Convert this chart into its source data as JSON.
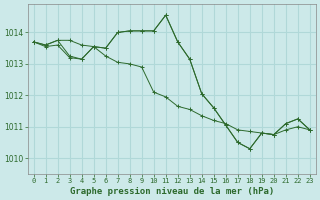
{
  "title": "Graphe pression niveau de la mer (hPa)",
  "bg_color": "#cce9e9",
  "grid_color": "#b0d8d8",
  "line_color": "#2d6a2d",
  "xlim": [
    -0.5,
    23.5
  ],
  "ylim": [
    1009.5,
    1014.9
  ],
  "yticks": [
    1010,
    1011,
    1012,
    1013,
    1014
  ],
  "xticks": [
    0,
    1,
    2,
    3,
    4,
    5,
    6,
    7,
    8,
    9,
    10,
    11,
    12,
    13,
    14,
    15,
    16,
    17,
    18,
    19,
    20,
    21,
    22,
    23
  ],
  "series1": [
    [
      0,
      1013.7
    ],
    [
      1,
      1013.6
    ],
    [
      2,
      1013.75
    ],
    [
      3,
      1013.75
    ],
    [
      4,
      1013.6
    ],
    [
      5,
      1013.55
    ],
    [
      6,
      1013.5
    ],
    [
      7,
      1014.0
    ],
    [
      8,
      1014.05
    ],
    [
      9,
      1014.05
    ],
    [
      10,
      1014.05
    ],
    [
      11,
      1014.55
    ],
    [
      12,
      1013.7
    ],
    [
      13,
      1013.15
    ],
    [
      14,
      1012.05
    ],
    [
      15,
      1011.6
    ],
    [
      16,
      1011.05
    ],
    [
      17,
      1010.5
    ],
    [
      18,
      1010.3
    ],
    [
      19,
      1010.8
    ],
    [
      20,
      1010.75
    ],
    [
      21,
      1011.1
    ],
    [
      22,
      1011.25
    ],
    [
      23,
      1010.9
    ]
  ],
  "series2": [
    [
      0,
      1013.7
    ],
    [
      1,
      1013.55
    ],
    [
      2,
      1013.6
    ],
    [
      3,
      1013.2
    ],
    [
      4,
      1013.15
    ],
    [
      5,
      1013.55
    ],
    [
      6,
      1013.25
    ],
    [
      7,
      1013.05
    ],
    [
      8,
      1013.0
    ],
    [
      9,
      1012.9
    ],
    [
      10,
      1012.1
    ],
    [
      11,
      1011.95
    ],
    [
      12,
      1011.65
    ],
    [
      13,
      1011.55
    ],
    [
      14,
      1011.35
    ],
    [
      15,
      1011.2
    ],
    [
      16,
      1011.1
    ],
    [
      17,
      1010.9
    ],
    [
      18,
      1010.85
    ],
    [
      19,
      1010.8
    ],
    [
      20,
      1010.75
    ],
    [
      21,
      1010.9
    ],
    [
      22,
      1011.0
    ],
    [
      23,
      1010.9
    ]
  ],
  "series3": [
    [
      0,
      1013.7
    ],
    [
      1,
      1013.6
    ],
    [
      2,
      1013.75
    ],
    [
      3,
      1013.25
    ],
    [
      4,
      1013.15
    ],
    [
      5,
      1013.55
    ],
    [
      6,
      1013.5
    ],
    [
      7,
      1014.0
    ],
    [
      8,
      1014.05
    ],
    [
      9,
      1014.05
    ],
    [
      10,
      1014.05
    ],
    [
      11,
      1014.55
    ],
    [
      12,
      1013.7
    ],
    [
      13,
      1013.15
    ],
    [
      14,
      1012.05
    ],
    [
      15,
      1011.6
    ],
    [
      16,
      1011.05
    ],
    [
      17,
      1010.5
    ],
    [
      18,
      1010.3
    ],
    [
      19,
      1010.8
    ],
    [
      20,
      1010.75
    ],
    [
      21,
      1011.1
    ],
    [
      22,
      1011.25
    ],
    [
      23,
      1010.9
    ]
  ]
}
